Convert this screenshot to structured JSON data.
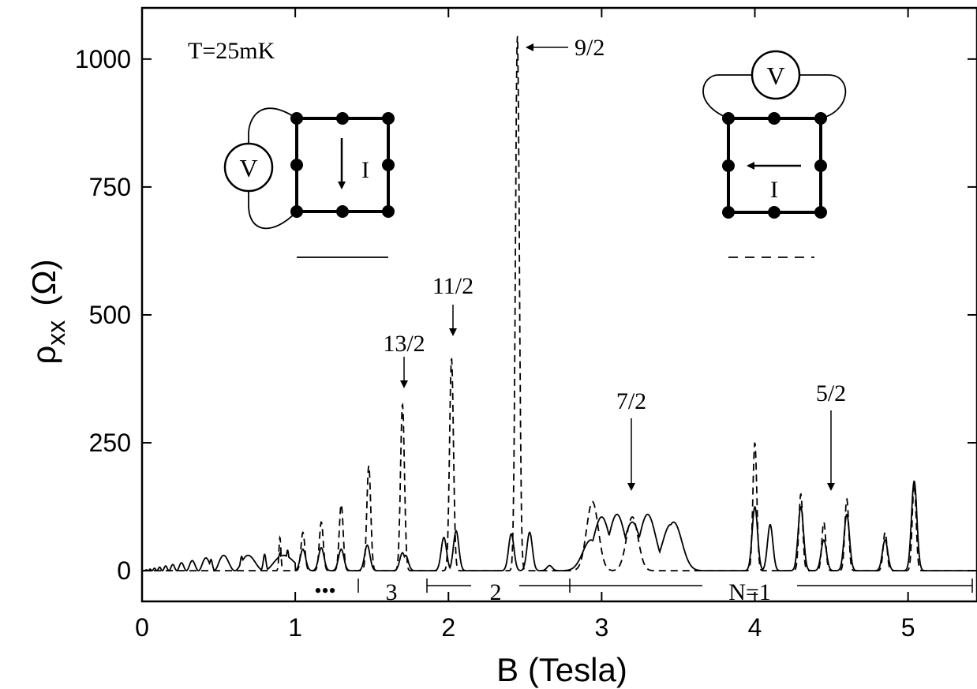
{
  "chart_data": {
    "type": "line",
    "title": "",
    "xlabel": "B  (Tesla)",
    "ylabel_main": "ρ",
    "ylabel_sub": "xx",
    "ylabel_unit": "(Ω)",
    "xlim": [
      0,
      5.45
    ],
    "ylim": [
      -60,
      1100
    ],
    "xticks": [
      0,
      1,
      2,
      3,
      4,
      5
    ],
    "yticks": [
      0,
      250,
      500,
      750,
      1000
    ],
    "grid": false,
    "series": [
      {
        "style": "solid",
        "points": [
          [
            0,
            0
          ],
          [
            0.25,
            8
          ],
          [
            0.45,
            22
          ],
          [
            0.65,
            28
          ],
          [
            0.8,
            32
          ],
          [
            0.9,
            35
          ],
          [
            0.95,
            40
          ],
          [
            1.05,
            42
          ],
          [
            1.17,
            45
          ],
          [
            1.3,
            42
          ],
          [
            1.47,
            50
          ],
          [
            1.7,
            35
          ],
          [
            1.72,
            30
          ],
          [
            1.97,
            65
          ],
          [
            2.05,
            78
          ],
          [
            2.41,
            72
          ],
          [
            2.53,
            75
          ],
          [
            2.66,
            10
          ],
          [
            2.93,
            60
          ],
          [
            3.0,
            105
          ],
          [
            3.1,
            110
          ],
          [
            3.2,
            95
          ],
          [
            3.3,
            110
          ],
          [
            3.45,
            90
          ],
          [
            3.47,
            95
          ],
          [
            4.0,
            125
          ],
          [
            4.1,
            90
          ],
          [
            4.3,
            125
          ],
          [
            4.45,
            60
          ],
          [
            4.6,
            110
          ],
          [
            4.85,
            60
          ],
          [
            5.04,
            175
          ]
        ]
      },
      {
        "style": "dashed",
        "points": [
          [
            0.9,
            65
          ],
          [
            1.05,
            75
          ],
          [
            1.17,
            95
          ],
          [
            1.3,
            130
          ],
          [
            1.48,
            205
          ],
          [
            1.7,
            325
          ],
          [
            2.02,
            415
          ],
          [
            2.45,
            1045
          ],
          [
            2.94,
            135
          ],
          [
            3.2,
            105
          ],
          [
            4.0,
            250
          ],
          [
            4.3,
            150
          ],
          [
            4.45,
            95
          ],
          [
            4.6,
            140
          ],
          [
            4.85,
            75
          ],
          [
            5.04,
            170
          ]
        ]
      }
    ],
    "annotations": {
      "temperature": "T=25mK",
      "fractions": [
        "9/2",
        "11/2",
        "13/2",
        "7/2",
        "5/2"
      ],
      "landau_levels": [
        "•••",
        "3",
        "2",
        "N=1"
      ],
      "inset_left": {
        "voltmeter": "V",
        "current": "I"
      },
      "inset_right": {
        "voltmeter": "V",
        "current": "I"
      }
    }
  }
}
